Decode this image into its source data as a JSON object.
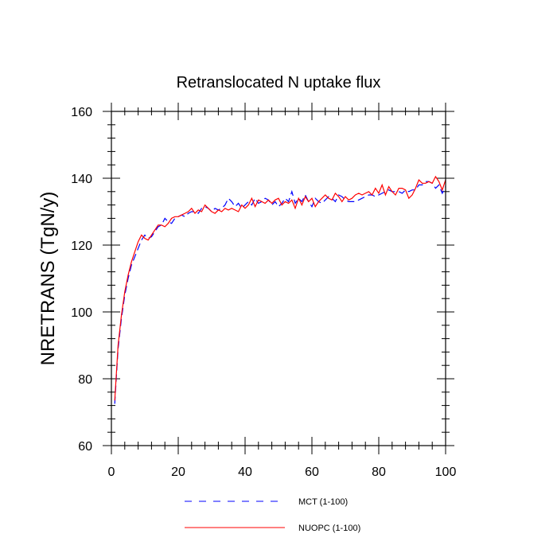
{
  "chart_data": {
    "type": "line",
    "title": "Retranslocated N uptake flux",
    "xlabel": "",
    "ylabel": "NRETRANS  (TgN/y)",
    "xlim": [
      0,
      100
    ],
    "ylim": [
      60,
      160
    ],
    "x_ticks": [
      0,
      20,
      40,
      60,
      80,
      100
    ],
    "y_ticks": [
      60,
      80,
      100,
      120,
      140,
      160
    ],
    "grid": false,
    "legend_position": "bottom",
    "x": [
      1,
      2,
      3,
      4,
      5,
      6,
      7,
      8,
      9,
      10,
      11,
      12,
      13,
      14,
      15,
      16,
      17,
      18,
      19,
      20,
      21,
      22,
      23,
      24,
      25,
      26,
      27,
      28,
      29,
      30,
      31,
      32,
      33,
      34,
      35,
      36,
      37,
      38,
      39,
      40,
      41,
      42,
      43,
      44,
      45,
      46,
      47,
      48,
      49,
      50,
      51,
      52,
      53,
      54,
      55,
      56,
      57,
      58,
      59,
      60,
      61,
      62,
      63,
      64,
      65,
      66,
      67,
      68,
      69,
      70,
      71,
      72,
      73,
      74,
      75,
      76,
      77,
      78,
      79,
      80,
      81,
      82,
      83,
      84,
      85,
      86,
      87,
      88,
      89,
      90,
      91,
      92,
      93,
      94,
      95,
      96,
      97,
      98,
      99,
      100
    ],
    "series": [
      {
        "name": "MCT (1-100)",
        "color": "#0000ff",
        "dash": "dashed",
        "values": [
          72.5,
          89,
          98,
          105,
          110,
          114,
          116.5,
          119,
          121.5,
          123,
          122,
          122.5,
          124,
          125.5,
          126,
          128,
          127,
          126.5,
          128,
          128.5,
          129,
          128.5,
          129.5,
          130,
          130,
          129.5,
          131,
          131.5,
          131,
          130,
          131,
          130.5,
          131,
          132,
          134,
          133,
          131.5,
          132.5,
          131,
          132,
          133,
          132,
          134,
          132.5,
          133,
          134,
          133.5,
          132,
          133,
          131.5,
          132.5,
          134,
          133,
          136,
          132.5,
          134,
          133,
          135,
          133,
          131.5,
          134,
          133,
          132.5,
          133.5,
          134.5,
          134,
          133,
          135,
          134.5,
          133.5,
          133,
          133,
          133,
          133.5,
          134,
          134.5,
          135,
          135,
          134.5,
          135,
          135.5,
          136,
          136.5,
          136,
          136,
          136,
          135.5,
          136.5,
          136,
          136.5,
          136.5,
          138,
          138,
          139,
          139,
          138.5,
          137,
          138,
          135.5,
          137.5
        ]
      },
      {
        "name": "NUOPC (1-100)",
        "color": "#ff0000",
        "dash": "solid",
        "values": [
          73.5,
          90,
          99,
          106,
          111,
          115,
          118,
          121,
          123,
          122,
          121.5,
          123,
          124.5,
          126,
          126,
          125.5,
          126.5,
          128,
          128.5,
          128.5,
          129,
          129.5,
          130,
          131,
          129.5,
          130.5,
          130,
          132,
          131,
          130,
          129.5,
          130.5,
          130,
          131,
          130.5,
          131,
          130.5,
          130,
          132,
          131,
          132,
          134,
          131.5,
          133.5,
          133,
          132.5,
          133.5,
          132.5,
          133.5,
          134,
          132,
          133,
          132.5,
          133.5,
          131,
          134,
          132,
          134.5,
          133,
          134,
          131.5,
          133,
          134,
          135,
          134,
          133.5,
          135.5,
          134.5,
          133,
          134.5,
          133.5,
          134,
          135,
          135.5,
          135,
          135.5,
          136,
          135,
          137,
          135.5,
          138,
          135,
          137.5,
          136,
          135,
          137,
          137,
          136.5,
          134,
          135,
          137,
          139.5,
          138.5,
          138.5,
          139,
          138.5,
          140.5,
          139,
          136.5,
          139.5
        ]
      }
    ]
  }
}
